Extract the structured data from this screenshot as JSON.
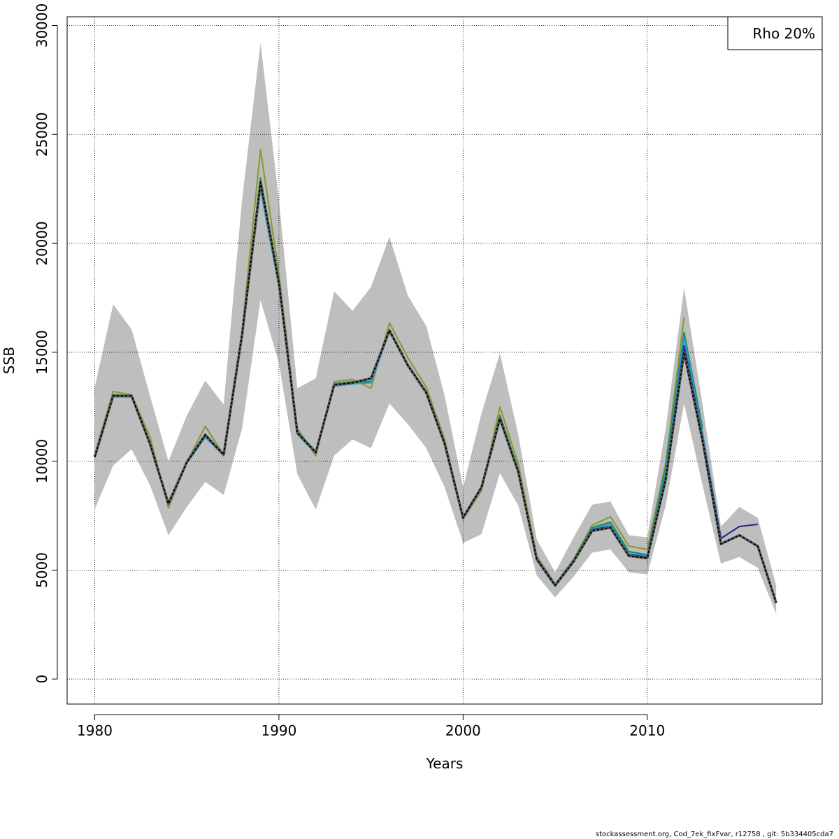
{
  "chart_data": {
    "type": "line",
    "title": "",
    "xlabel": "Years",
    "ylabel": "SSB",
    "xlim": [
      1978.5,
      2019.5
    ],
    "ylim": [
      -1150,
      30400
    ],
    "x_ticks": [
      "1980",
      "1990",
      "2000",
      "2010"
    ],
    "x_tick_values": [
      1980,
      1990,
      2000,
      2010
    ],
    "y_ticks": [
      "0",
      "5000",
      "10000",
      "15000",
      "20000",
      "25000",
      "30000"
    ],
    "y_tick_values": [
      0,
      5000,
      10000,
      15000,
      20000,
      25000,
      30000
    ],
    "grid": true,
    "legend_position": "top-right",
    "legend_label": "Rho 20%",
    "footer": "stockassessment.org, Cod_7ek_fixFvar, r12758 , git: 5b334405cda7",
    "years": [
      1980,
      1981,
      1982,
      1983,
      1984,
      1985,
      1986,
      1987,
      1988,
      1989,
      1990,
      1991,
      1992,
      1993,
      1994,
      1995,
      1996,
      1997,
      1998,
      1999,
      2000,
      2001,
      2002,
      2003,
      2004,
      2005,
      2006,
      2007,
      2008,
      2009,
      2010,
      2011,
      2012,
      2013,
      2014,
      2015,
      2016,
      2017
    ],
    "ci_upper": [
      13400,
      17200,
      16050,
      13000,
      10000,
      12100,
      13700,
      12600,
      22000,
      29200,
      22000,
      13350,
      13800,
      17800,
      16900,
      18000,
      20300,
      17600,
      16200,
      13000,
      8800,
      12200,
      14950,
      11200,
      6400,
      4900,
      6500,
      8000,
      8150,
      6600,
      6500,
      11500,
      17950,
      12600,
      7000,
      7900,
      7400,
      4300
    ],
    "ci_lower": [
      7800,
      9800,
      10550,
      8900,
      6600,
      7900,
      9050,
      8450,
      11500,
      17400,
      14500,
      9400,
      7780,
      10250,
      11000,
      10600,
      12650,
      11700,
      10600,
      8800,
      6250,
      6650,
      9450,
      7950,
      4750,
      3750,
      4700,
      5800,
      5950,
      4900,
      4800,
      7950,
      12650,
      8900,
      5300,
      5600,
      5100,
      3000
    ],
    "color_colors": {
      "band": "#bebebe",
      "grid": "#000000"
    },
    "series": [
      {
        "color": "#000000",
        "dashed": true,
        "years": [
          1980,
          1981,
          1982,
          1983,
          1984,
          1985,
          1986,
          1987,
          1988,
          1989,
          1990,
          1991,
          1992,
          1993,
          1994,
          1995,
          1996,
          1997,
          1998,
          1999,
          2000,
          2001,
          2002,
          2003,
          2004,
          2005,
          2006,
          2007,
          2008,
          2009,
          2010,
          2011,
          2012,
          2013,
          2014,
          2015,
          2016,
          2017
        ],
        "values": [
          10200,
          13000,
          13000,
          10800,
          8050,
          9950,
          11200,
          10300,
          15800,
          22800,
          18200,
          11300,
          10400,
          13500,
          13600,
          13800,
          16000,
          14400,
          13150,
          10800,
          7400,
          8800,
          11950,
          9500,
          5500,
          4300,
          5400,
          6800,
          6950,
          5650,
          5550,
          9150,
          15000,
          10950,
          6200,
          6600,
          6100,
          3500
        ]
      },
      {
        "color": "#2b2a8a",
        "dashed": false,
        "years": [
          1980,
          1981,
          1982,
          1983,
          1984,
          1985,
          1986,
          1987,
          1988,
          1989,
          1990,
          1991,
          1992,
          1993,
          1994,
          1995,
          1996,
          1997,
          1998,
          1999,
          2000,
          2001,
          2002,
          2003,
          2004,
          2005,
          2006,
          2007,
          2008,
          2009,
          2010,
          2011,
          2012,
          2013,
          2014,
          2015,
          2016
        ],
        "values": [
          10200,
          13000,
          13000,
          10800,
          8050,
          9950,
          11200,
          10300,
          15800,
          22800,
          18200,
          11300,
          10400,
          13500,
          13600,
          13800,
          16000,
          14400,
          13150,
          10800,
          7400,
          8800,
          11950,
          9500,
          5500,
          4300,
          5400,
          6850,
          7000,
          5700,
          5600,
          9300,
          15300,
          11100,
          6450,
          7000,
          7100
        ]
      },
      {
        "color": "#1f9ecf",
        "dashed": false,
        "years": [
          1980,
          1981,
          1982,
          1983,
          1984,
          1985,
          1986,
          1987,
          1988,
          1989,
          1990,
          1991,
          1992,
          1993,
          1994,
          1995,
          1996,
          1997,
          1998,
          1999,
          2000,
          2001,
          2002,
          2003,
          2004,
          2005,
          2006,
          2007,
          2008,
          2009,
          2010,
          2011,
          2012,
          2013,
          2014
        ],
        "values": [
          10150,
          12950,
          12950,
          10750,
          8000,
          9900,
          11100,
          10250,
          15700,
          22500,
          18000,
          11250,
          10350,
          13450,
          13550,
          13600,
          15950,
          14350,
          13100,
          10750,
          7350,
          8750,
          11900,
          9450,
          5450,
          4250,
          5350,
          6900,
          7100,
          5750,
          5650,
          9500,
          15700,
          11300,
          6500
        ]
      },
      {
        "color": "#198c55",
        "dashed": false,
        "years": [
          1980,
          1981,
          1982,
          1983,
          1984,
          1985,
          1986,
          1987,
          1988,
          1989,
          1990,
          1991,
          1992,
          1993,
          1994,
          1995,
          1996,
          1997,
          1998,
          1999,
          2000,
          2001,
          2002,
          2003,
          2004,
          2005,
          2006,
          2007,
          2008,
          2009,
          2010,
          2011,
          2012,
          2013
        ],
        "values": [
          10200,
          13050,
          13000,
          10850,
          8100,
          10000,
          11250,
          10300,
          15900,
          23000,
          18300,
          11350,
          10450,
          13550,
          13650,
          13650,
          16050,
          14450,
          13200,
          10850,
          7450,
          8850,
          12100,
          9600,
          5550,
          4350,
          5450,
          6950,
          7200,
          5850,
          5700,
          9700,
          15900,
          11500
        ]
      },
      {
        "color": "#8a9a3a",
        "dashed": false,
        "years": [
          1980,
          1981,
          1982,
          1983,
          1984,
          1985,
          1986,
          1987,
          1988,
          1989,
          1990,
          1991,
          1992,
          1993,
          1994,
          1995,
          1996,
          1997,
          1998,
          1999,
          2000,
          2001,
          2002,
          2003,
          2004,
          2005,
          2006,
          2007,
          2008,
          2009,
          2010,
          2011,
          2012
        ],
        "values": [
          10300,
          13200,
          13050,
          11100,
          7850,
          9950,
          11600,
          10300,
          16000,
          24300,
          18600,
          11500,
          10250,
          13650,
          13750,
          13350,
          16350,
          14750,
          13400,
          11000,
          7350,
          8650,
          12500,
          9850,
          5650,
          4350,
          5500,
          7050,
          7450,
          6100,
          5950,
          9900,
          16600
        ]
      }
    ]
  }
}
